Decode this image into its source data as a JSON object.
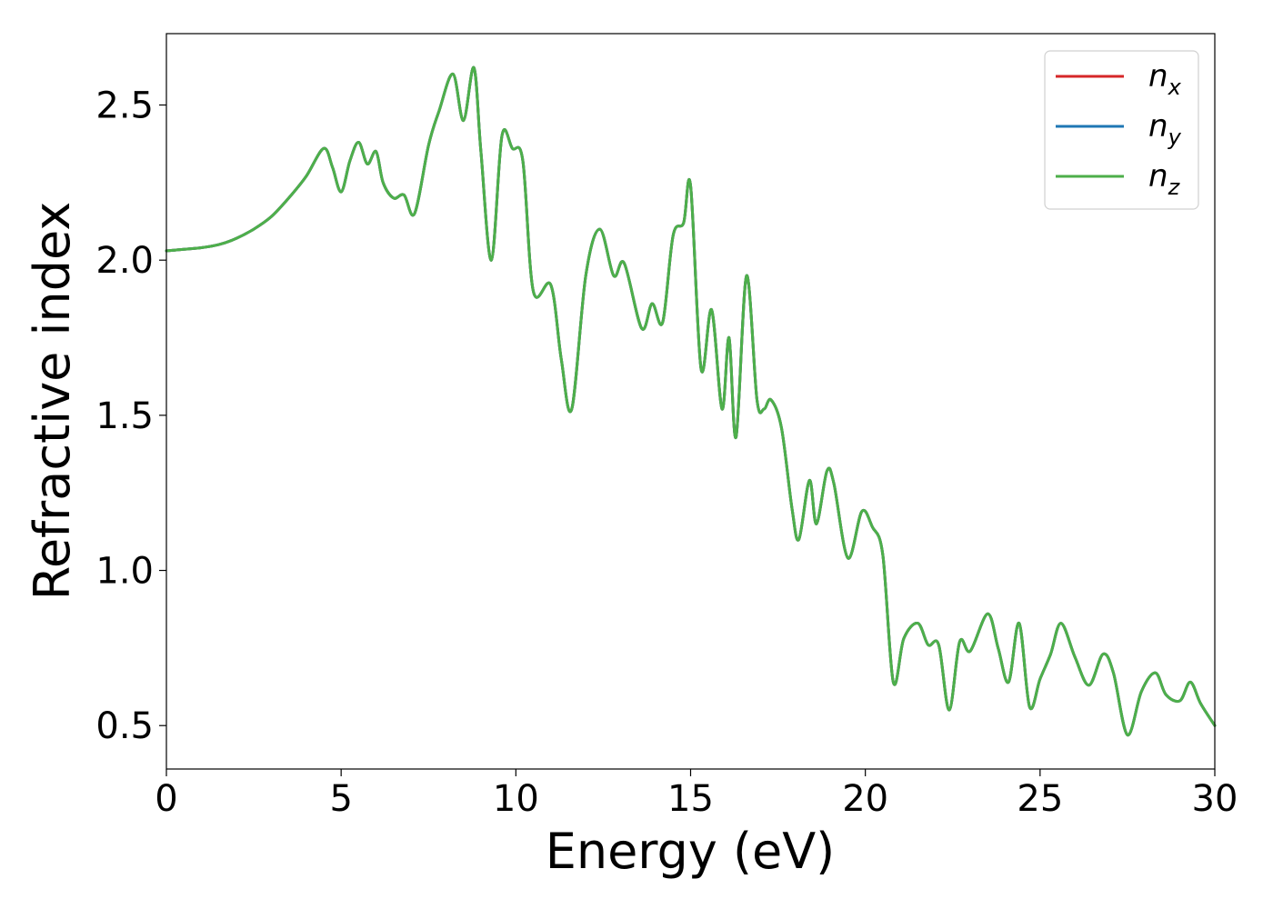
{
  "chart_data": {
    "type": "line",
    "xlabel": "Energy (eV)",
    "ylabel": "Refractive index",
    "xlim": [
      0,
      30
    ],
    "ylim": [
      0.36,
      2.73
    ],
    "xticks": [
      "0",
      "5",
      "10",
      "15",
      "20",
      "25",
      "30"
    ],
    "yticks": [
      "0.5",
      "1.0",
      "1.5",
      "2.0",
      "2.5"
    ],
    "grid": false,
    "legend_position": "top-right",
    "x": [
      0,
      0.5,
      1,
      1.5,
      2,
      2.5,
      3,
      3.5,
      4,
      4.5,
      4.75,
      5,
      5.25,
      5.5,
      5.75,
      6,
      6.2,
      6.5,
      6.8,
      7.1,
      7.5,
      7.8,
      8.2,
      8.5,
      8.8,
      9,
      9.3,
      9.6,
      9.9,
      10.2,
      10.5,
      11,
      11.3,
      11.6,
      12,
      12.4,
      12.8,
      13.1,
      13.6,
      13.9,
      14.2,
      14.5,
      14.8,
      15,
      15.3,
      15.6,
      15.9,
      16.1,
      16.3,
      16.6,
      16.9,
      17.1,
      17.3,
      17.6,
      17.9,
      18.1,
      18.4,
      18.6,
      18.9,
      19.1,
      19.5,
      19.9,
      20.2,
      20.5,
      20.8,
      21.1,
      21.5,
      21.8,
      22.1,
      22.4,
      22.7,
      23,
      23.5,
      23.8,
      24.1,
      24.4,
      24.7,
      25,
      25.3,
      25.6,
      26,
      26.4,
      26.8,
      27.1,
      27.5,
      27.9,
      28.3,
      28.6,
      29,
      29.3,
      29.6,
      30
    ],
    "series": [
      {
        "name": "n_x",
        "label_main": "n",
        "label_sub": "x",
        "color": "#d62728",
        "values": [
          2.03,
          2.035,
          2.04,
          2.05,
          2.07,
          2.1,
          2.14,
          2.2,
          2.27,
          2.36,
          2.3,
          2.22,
          2.32,
          2.38,
          2.31,
          2.35,
          2.25,
          2.2,
          2.21,
          2.15,
          2.37,
          2.48,
          2.6,
          2.45,
          2.62,
          2.35,
          2.0,
          2.4,
          2.36,
          2.32,
          1.9,
          1.92,
          1.68,
          1.52,
          1.95,
          2.1,
          1.95,
          1.99,
          1.78,
          1.86,
          1.8,
          2.08,
          2.12,
          2.24,
          1.65,
          1.84,
          1.52,
          1.75,
          1.43,
          1.95,
          1.55,
          1.52,
          1.55,
          1.46,
          1.2,
          1.1,
          1.29,
          1.15,
          1.32,
          1.28,
          1.04,
          1.19,
          1.14,
          1.05,
          0.64,
          0.78,
          0.83,
          0.76,
          0.76,
          0.55,
          0.77,
          0.74,
          0.86,
          0.75,
          0.64,
          0.83,
          0.56,
          0.65,
          0.73,
          0.83,
          0.72,
          0.63,
          0.73,
          0.67,
          0.47,
          0.61,
          0.67,
          0.6,
          0.58,
          0.64,
          0.57,
          0.5
        ]
      },
      {
        "name": "n_y",
        "label_main": "n",
        "label_sub": "y",
        "color": "#1f77b4",
        "values": [
          2.03,
          2.035,
          2.04,
          2.05,
          2.07,
          2.1,
          2.14,
          2.2,
          2.27,
          2.36,
          2.3,
          2.22,
          2.32,
          2.38,
          2.31,
          2.35,
          2.25,
          2.2,
          2.21,
          2.15,
          2.37,
          2.48,
          2.6,
          2.45,
          2.62,
          2.35,
          2.0,
          2.4,
          2.36,
          2.32,
          1.9,
          1.92,
          1.68,
          1.52,
          1.95,
          2.1,
          1.95,
          1.99,
          1.78,
          1.86,
          1.8,
          2.08,
          2.12,
          2.24,
          1.65,
          1.84,
          1.52,
          1.75,
          1.43,
          1.95,
          1.55,
          1.52,
          1.55,
          1.46,
          1.2,
          1.1,
          1.29,
          1.15,
          1.32,
          1.28,
          1.04,
          1.19,
          1.14,
          1.05,
          0.64,
          0.78,
          0.83,
          0.76,
          0.76,
          0.55,
          0.77,
          0.74,
          0.86,
          0.75,
          0.64,
          0.83,
          0.56,
          0.65,
          0.73,
          0.83,
          0.72,
          0.63,
          0.73,
          0.67,
          0.47,
          0.61,
          0.67,
          0.6,
          0.58,
          0.64,
          0.57,
          0.5
        ]
      },
      {
        "name": "n_z",
        "label_main": "n",
        "label_sub": "z",
        "color": "#4daf4a",
        "values": [
          2.03,
          2.035,
          2.04,
          2.05,
          2.07,
          2.1,
          2.14,
          2.2,
          2.27,
          2.36,
          2.3,
          2.22,
          2.32,
          2.38,
          2.31,
          2.35,
          2.25,
          2.2,
          2.21,
          2.15,
          2.37,
          2.48,
          2.6,
          2.45,
          2.62,
          2.35,
          2.0,
          2.4,
          2.36,
          2.32,
          1.9,
          1.92,
          1.68,
          1.52,
          1.95,
          2.1,
          1.95,
          1.99,
          1.78,
          1.86,
          1.8,
          2.08,
          2.12,
          2.24,
          1.65,
          1.84,
          1.52,
          1.75,
          1.43,
          1.95,
          1.55,
          1.52,
          1.55,
          1.46,
          1.2,
          1.1,
          1.29,
          1.15,
          1.32,
          1.28,
          1.04,
          1.19,
          1.14,
          1.05,
          0.64,
          0.78,
          0.83,
          0.76,
          0.76,
          0.55,
          0.77,
          0.74,
          0.86,
          0.75,
          0.64,
          0.83,
          0.56,
          0.65,
          0.73,
          0.83,
          0.72,
          0.63,
          0.73,
          0.67,
          0.47,
          0.61,
          0.67,
          0.6,
          0.58,
          0.64,
          0.57,
          0.5
        ]
      }
    ]
  }
}
